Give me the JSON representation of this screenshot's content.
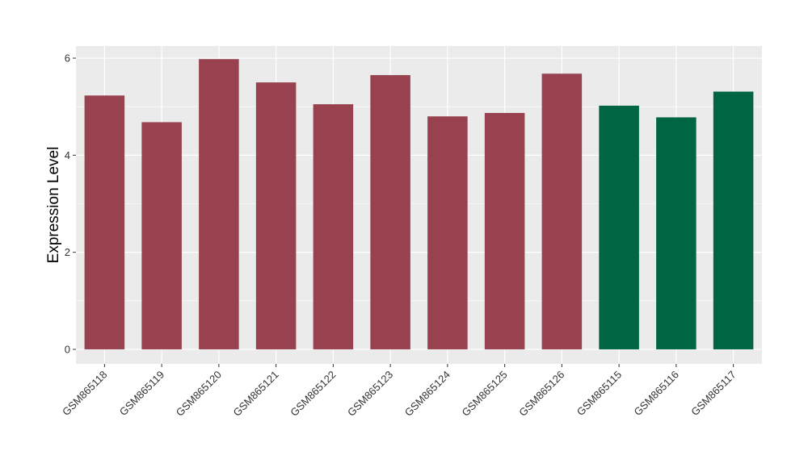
{
  "chart_data": {
    "type": "bar",
    "title": "",
    "xlabel": "",
    "ylabel": "Expression Level",
    "ylim": [
      -0.3,
      6.25
    ],
    "yticks": [
      0,
      2,
      4,
      6
    ],
    "grid": true,
    "legend": "none",
    "categories": [
      "GSM865118",
      "GSM865119",
      "GSM865120",
      "GSM865121",
      "GSM865122",
      "GSM865123",
      "GSM865124",
      "GSM865125",
      "GSM865126",
      "GSM865115",
      "GSM865116",
      "GSM865117"
    ],
    "values": [
      5.23,
      4.68,
      5.98,
      5.5,
      5.05,
      5.65,
      4.8,
      4.87,
      5.68,
      5.02,
      4.78,
      5.31
    ],
    "groups": [
      "a",
      "a",
      "a",
      "a",
      "a",
      "a",
      "a",
      "a",
      "a",
      "b",
      "b",
      "b"
    ],
    "colors": {
      "a": "#99424F",
      "b": "#006543"
    },
    "panel_background": "#EBEBEB",
    "grid_color": "#FFFFFF"
  }
}
